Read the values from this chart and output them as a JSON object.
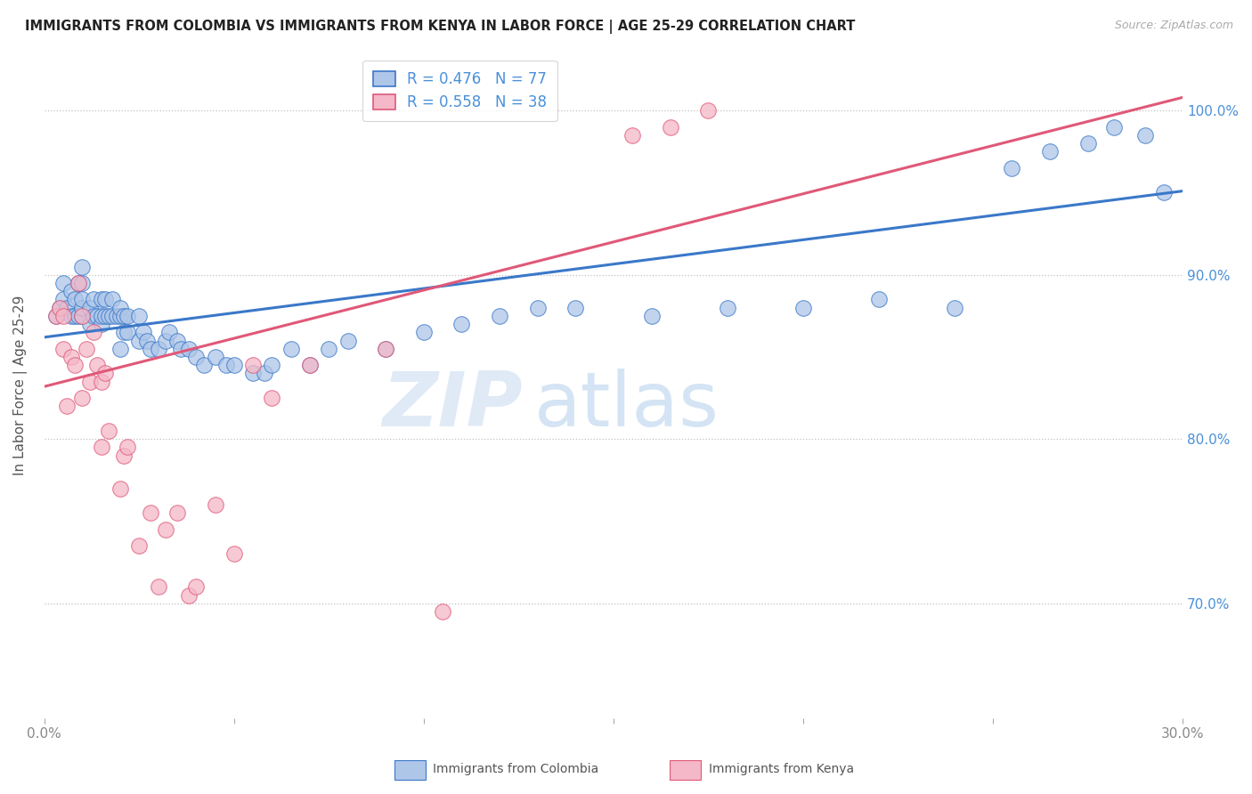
{
  "title": "IMMIGRANTS FROM COLOMBIA VS IMMIGRANTS FROM KENYA IN LABOR FORCE | AGE 25-29 CORRELATION CHART",
  "source": "Source: ZipAtlas.com",
  "ylabel": "In Labor Force | Age 25-29",
  "xlim": [
    0.0,
    0.3
  ],
  "ylim": [
    0.63,
    1.035
  ],
  "xticks": [
    0.0,
    0.05,
    0.1,
    0.15,
    0.2,
    0.25,
    0.3
  ],
  "xtick_labels": [
    "0.0%",
    "",
    "",
    "",
    "",
    "",
    "30.0%"
  ],
  "ytick_labels_right": [
    "70.0%",
    "80.0%",
    "90.0%",
    "100.0%"
  ],
  "yticks_right": [
    0.7,
    0.8,
    0.9,
    1.0
  ],
  "colombia_color": "#aec6e8",
  "kenya_color": "#f4b8c8",
  "colombia_line_color": "#3a78c9",
  "kenya_line_color": "#e05878",
  "legend_colombia": "R = 0.476   N = 77",
  "legend_kenya": "R = 0.558   N = 38",
  "watermark_zip": "ZIP",
  "watermark_atlas": "atlas",
  "colombia_scatter_x": [
    0.003,
    0.004,
    0.005,
    0.005,
    0.006,
    0.007,
    0.007,
    0.008,
    0.008,
    0.009,
    0.009,
    0.01,
    0.01,
    0.01,
    0.01,
    0.01,
    0.012,
    0.012,
    0.013,
    0.013,
    0.014,
    0.015,
    0.015,
    0.015,
    0.016,
    0.016,
    0.017,
    0.018,
    0.018,
    0.019,
    0.02,
    0.02,
    0.02,
    0.021,
    0.021,
    0.022,
    0.022,
    0.025,
    0.025,
    0.026,
    0.027,
    0.028,
    0.03,
    0.032,
    0.033,
    0.035,
    0.036,
    0.038,
    0.04,
    0.042,
    0.045,
    0.048,
    0.05,
    0.055,
    0.058,
    0.06,
    0.065,
    0.07,
    0.075,
    0.08,
    0.09,
    0.1,
    0.11,
    0.12,
    0.13,
    0.14,
    0.16,
    0.18,
    0.2,
    0.22,
    0.24,
    0.255,
    0.265,
    0.275,
    0.282,
    0.29,
    0.295
  ],
  "colombia_scatter_y": [
    0.875,
    0.88,
    0.885,
    0.895,
    0.88,
    0.875,
    0.89,
    0.875,
    0.885,
    0.875,
    0.895,
    0.875,
    0.88,
    0.885,
    0.895,
    0.905,
    0.87,
    0.88,
    0.875,
    0.885,
    0.875,
    0.87,
    0.875,
    0.885,
    0.875,
    0.885,
    0.875,
    0.875,
    0.885,
    0.875,
    0.855,
    0.875,
    0.88,
    0.865,
    0.875,
    0.865,
    0.875,
    0.86,
    0.875,
    0.865,
    0.86,
    0.855,
    0.855,
    0.86,
    0.865,
    0.86,
    0.855,
    0.855,
    0.85,
    0.845,
    0.85,
    0.845,
    0.845,
    0.84,
    0.84,
    0.845,
    0.855,
    0.845,
    0.855,
    0.86,
    0.855,
    0.865,
    0.87,
    0.875,
    0.88,
    0.88,
    0.875,
    0.88,
    0.88,
    0.885,
    0.88,
    0.965,
    0.975,
    0.98,
    0.99,
    0.985,
    0.95
  ],
  "kenya_scatter_x": [
    0.003,
    0.004,
    0.005,
    0.005,
    0.006,
    0.007,
    0.008,
    0.009,
    0.01,
    0.01,
    0.011,
    0.012,
    0.013,
    0.014,
    0.015,
    0.015,
    0.016,
    0.017,
    0.02,
    0.021,
    0.022,
    0.025,
    0.028,
    0.03,
    0.032,
    0.035,
    0.038,
    0.04,
    0.045,
    0.05,
    0.055,
    0.06,
    0.07,
    0.09,
    0.105,
    0.155,
    0.165,
    0.175
  ],
  "kenya_scatter_y": [
    0.875,
    0.88,
    0.855,
    0.875,
    0.82,
    0.85,
    0.845,
    0.895,
    0.825,
    0.875,
    0.855,
    0.835,
    0.865,
    0.845,
    0.795,
    0.835,
    0.84,
    0.805,
    0.77,
    0.79,
    0.795,
    0.735,
    0.755,
    0.71,
    0.745,
    0.755,
    0.705,
    0.71,
    0.76,
    0.73,
    0.845,
    0.825,
    0.845,
    0.855,
    0.695,
    0.985,
    0.99,
    1.0
  ],
  "colombia_trend": [
    0.862,
    0.951
  ],
  "kenya_trend": [
    0.832,
    1.008
  ]
}
